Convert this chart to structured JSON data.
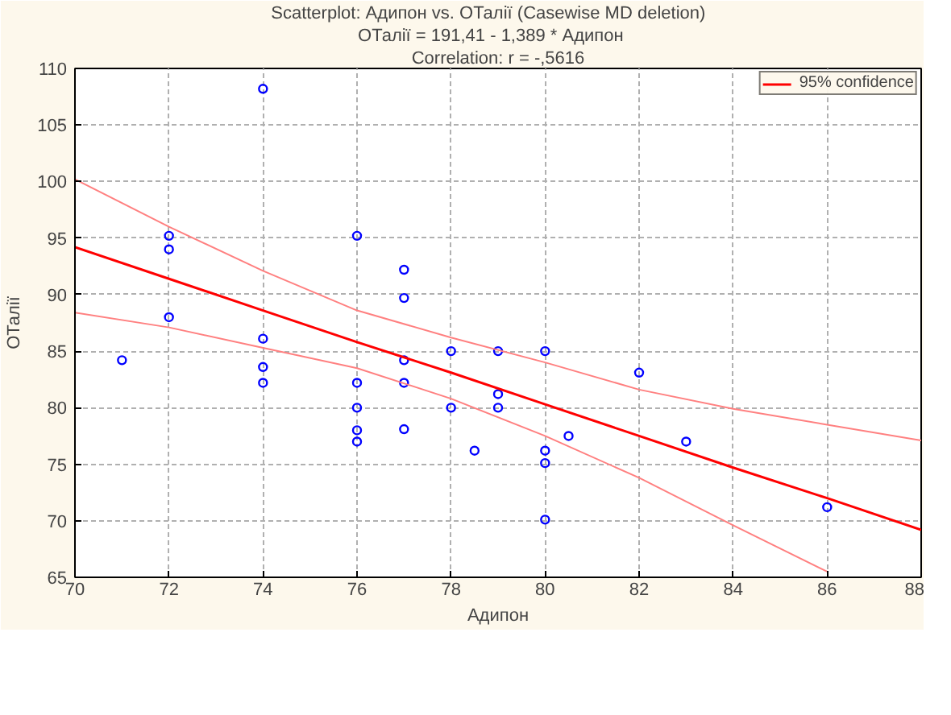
{
  "chart_data": {
    "type": "scatter",
    "title": "Scatterplot: Адипон   vs. ОТалії   (Casewise MD deletion)",
    "subtitle": "ОТалії   = 191,41 - 1,389  * Адипон",
    "annotations": [
      "Correlation: r = -,5616"
    ],
    "xlabel": "Адипон",
    "ylabel": "ОТалії",
    "xlim": [
      70,
      88
    ],
    "xticks": [
      70,
      72,
      74,
      76,
      78,
      80,
      82,
      84,
      86,
      88
    ],
    "ylim": [
      65,
      110
    ],
    "yticks": [
      65,
      70,
      75,
      80,
      85,
      90,
      95,
      100,
      105,
      110
    ],
    "grid": true,
    "legend": "top right",
    "marker": "circle",
    "series": [
      {
        "color": "#0000ff",
        "x": [
          71,
          72,
          72,
          72,
          74,
          74,
          74,
          74,
          76,
          76,
          76,
          76,
          76,
          77,
          77,
          77,
          77,
          77,
          78,
          78,
          78.5,
          79,
          79,
          79,
          80,
          80,
          80,
          80,
          80.5,
          82,
          83,
          86
        ],
        "values": [
          84.2,
          95.2,
          94,
          88,
          108.2,
          86.1,
          83.6,
          82.2,
          95.2,
          82.2,
          80,
          78,
          77,
          92.2,
          89.7,
          84.2,
          82.2,
          78.1,
          85,
          80,
          76.2,
          85,
          81.2,
          80,
          85,
          76.2,
          75.1,
          70.1,
          77.5,
          83.1,
          77,
          71.2
        ]
      },
      {
        "type": "line",
        "name": "95% confidence",
        "color": "#ff0000",
        "line_style": "solid",
        "marker": "none",
        "x": [
          70,
          72,
          74,
          76,
          78,
          80,
          82,
          84,
          86,
          88
        ],
        "values": [
          94.2,
          91.4,
          88.6,
          85.8,
          83.1,
          80.3,
          77.5,
          74.7,
          72.0,
          69.2
        ]
      },
      {
        "type": "line",
        "color": "#ff8080",
        "line_style": "solid",
        "marker": "none",
        "x": [
          70,
          72,
          74,
          76,
          78,
          80,
          82,
          84,
          86
        ],
        "values": [
          88.4,
          87.1,
          85.3,
          83.5,
          80.8,
          77.5,
          73.8,
          69.6,
          65.5
        ]
      },
      {
        "type": "line",
        "color": "#ff8080",
        "line_style": "solid",
        "marker": "none",
        "x": [
          70,
          72,
          74,
          76,
          78,
          80,
          82,
          84,
          86,
          88
        ],
        "values": [
          100.2,
          96.0,
          92.1,
          88.6,
          86.2,
          84.0,
          81.6,
          79.9,
          78.5,
          77.1
        ]
      }
    ]
  }
}
